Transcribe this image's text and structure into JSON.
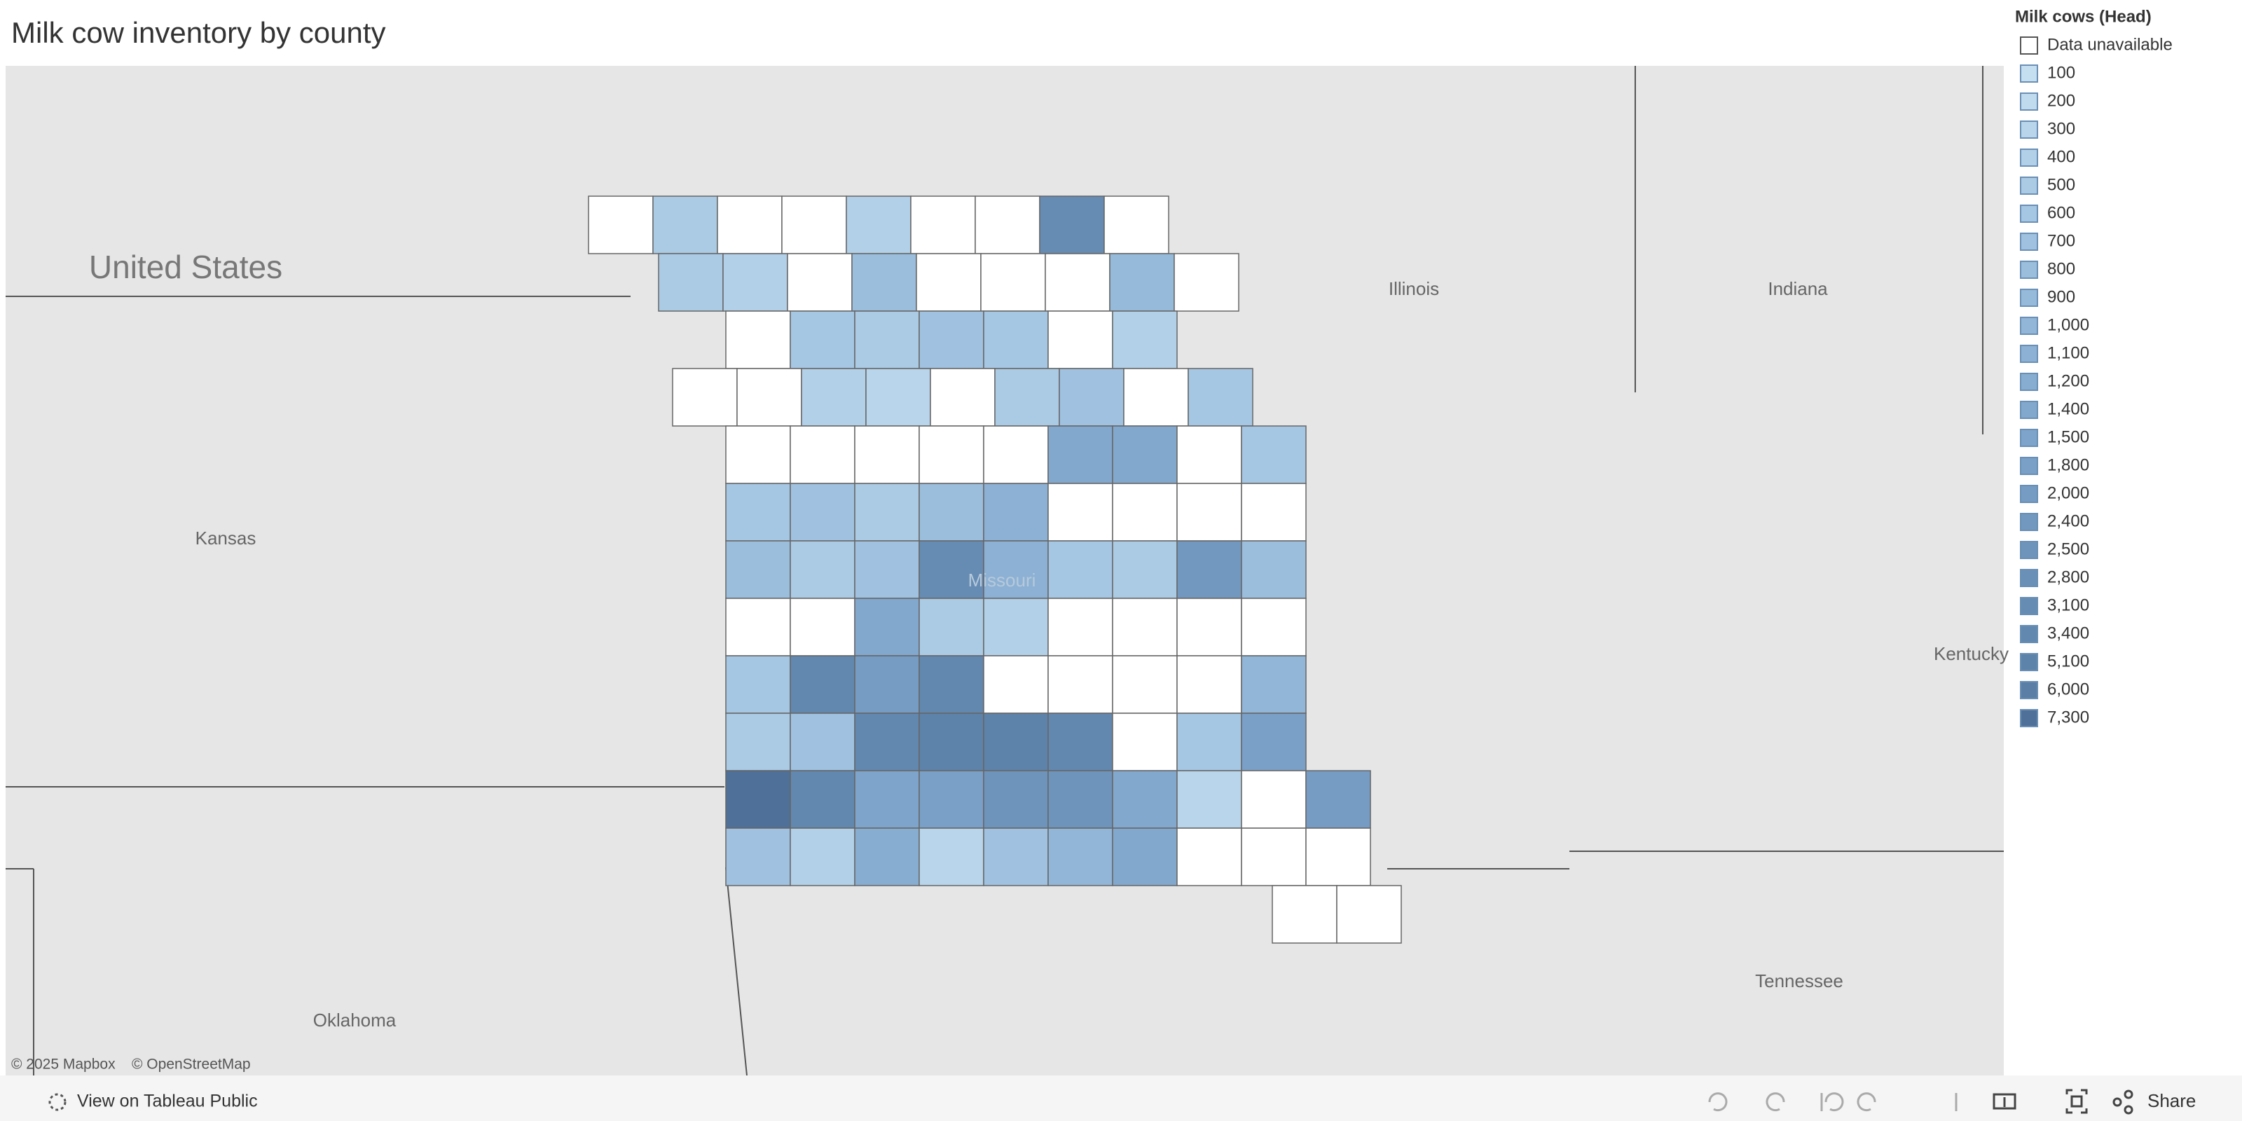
{
  "header": {
    "title": "Milk cow inventory by county"
  },
  "legend": {
    "title": "Milk cows (Head)",
    "unavailable": {
      "label": "Data unavailable",
      "color": "#ffffff"
    },
    "items": [
      {
        "value": 100,
        "color": "#c5def0"
      },
      {
        "value": 200,
        "color": "#c0daee"
      },
      {
        "value": 300,
        "color": "#b9d5eb"
      },
      {
        "value": 400,
        "color": "#b2d0e8"
      },
      {
        "value": 500,
        "color": "#abcbe5"
      },
      {
        "value": 600,
        "color": "#a6c7e3"
      },
      {
        "value": 700,
        "color": "#a0c2e0"
      },
      {
        "value": 800,
        "color": "#9bbedd"
      },
      {
        "value": 900,
        "color": "#96bada"
      },
      {
        "value": 1000,
        "label": "1,000",
        "color": "#91b6d7"
      },
      {
        "value": 1100,
        "label": "1,100",
        "color": "#8cb1d4"
      },
      {
        "value": 1200,
        "label": "1,200",
        "color": "#87add1"
      },
      {
        "value": 1400,
        "label": "1,400",
        "color": "#82a8ce"
      },
      {
        "value": 1500,
        "label": "1,500",
        "color": "#7ea4cb"
      },
      {
        "value": 1800,
        "label": "1,800",
        "color": "#7aa0c8"
      },
      {
        "value": 2000,
        "label": "2,000",
        "color": "#769cc4"
      },
      {
        "value": 2400,
        "label": "2,400",
        "color": "#7298c0"
      },
      {
        "value": 2500,
        "label": "2,500",
        "color": "#6e94bc"
      },
      {
        "value": 2800,
        "label": "2,800",
        "color": "#6a90b8"
      },
      {
        "value": 3100,
        "label": "3,100",
        "color": "#668cb4"
      },
      {
        "value": 3400,
        "label": "3,400",
        "color": "#6288b0"
      },
      {
        "value": 5100,
        "label": "5,100",
        "color": "#5e83aa"
      },
      {
        "value": 6000,
        "label": "6,000",
        "color": "#5a7ea5"
      },
      {
        "value": 7300,
        "label": "7,300",
        "color": "#4f7099"
      }
    ]
  },
  "map": {
    "labels": [
      "United States",
      "Kansas",
      "Illinois",
      "Indiana",
      "Kentucky",
      "Tennessee",
      "Oklahoma",
      "Missouri"
    ],
    "attribution": [
      "© 2025 Mapbox",
      "© OpenStreetMap"
    ],
    "counties": [
      [
        null,
        500,
        null,
        null,
        400,
        null,
        null,
        3100,
        null
      ],
      [
        500,
        400,
        null,
        800,
        null,
        null,
        null,
        900,
        null
      ],
      [
        null,
        600,
        500,
        700,
        600,
        null,
        400
      ],
      [
        null,
        null,
        400,
        300,
        null,
        500,
        700,
        null,
        600
      ],
      [
        null,
        null,
        null,
        null,
        null,
        1400,
        1400,
        null,
        600
      ],
      [
        600,
        700,
        500,
        800,
        1100,
        null,
        null,
        null,
        null
      ],
      [
        800,
        500,
        700,
        3100,
        1100,
        600,
        500,
        2400,
        800
      ],
      [
        null,
        null,
        1400,
        500,
        400,
        null,
        null,
        null,
        null
      ],
      [
        600,
        3400,
        2000,
        3400,
        null,
        null,
        null,
        null,
        1000
      ],
      [
        500,
        700,
        3400,
        5100,
        5100,
        3400,
        null,
        600,
        1800
      ],
      [
        7300,
        3400,
        1500,
        1800,
        2500,
        2500,
        1400,
        300,
        null,
        2000
      ],
      [
        700,
        400,
        1200,
        300,
        700,
        1000,
        1400,
        null,
        null,
        null
      ],
      [
        null,
        null
      ]
    ]
  },
  "toolbar": {
    "view": "View on Tableau Public",
    "share": "Share"
  }
}
